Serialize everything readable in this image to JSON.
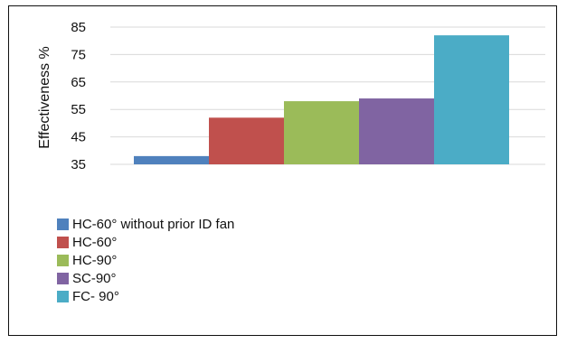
{
  "chart_data": {
    "type": "bar",
    "title": "",
    "xlabel": "",
    "ylabel": "Effectiveness %",
    "ylim": [
      35,
      85
    ],
    "yticks": [
      35,
      45,
      55,
      65,
      75,
      85
    ],
    "grid": true,
    "legend_position": "bottom-left",
    "series": [
      {
        "name": "HC-60° without prior ID fan",
        "values": [
          38
        ],
        "color": "#4F81BD"
      },
      {
        "name": "HC-60°",
        "values": [
          52
        ],
        "color": "#C0504D"
      },
      {
        "name": "HC-90°",
        "values": [
          58
        ],
        "color": "#9BBB59"
      },
      {
        "name": "SC-90°",
        "values": [
          59
        ],
        "color": "#8064A2"
      },
      {
        "name": "FC- 90°",
        "values": [
          82
        ],
        "color": "#4BACC6"
      }
    ]
  }
}
